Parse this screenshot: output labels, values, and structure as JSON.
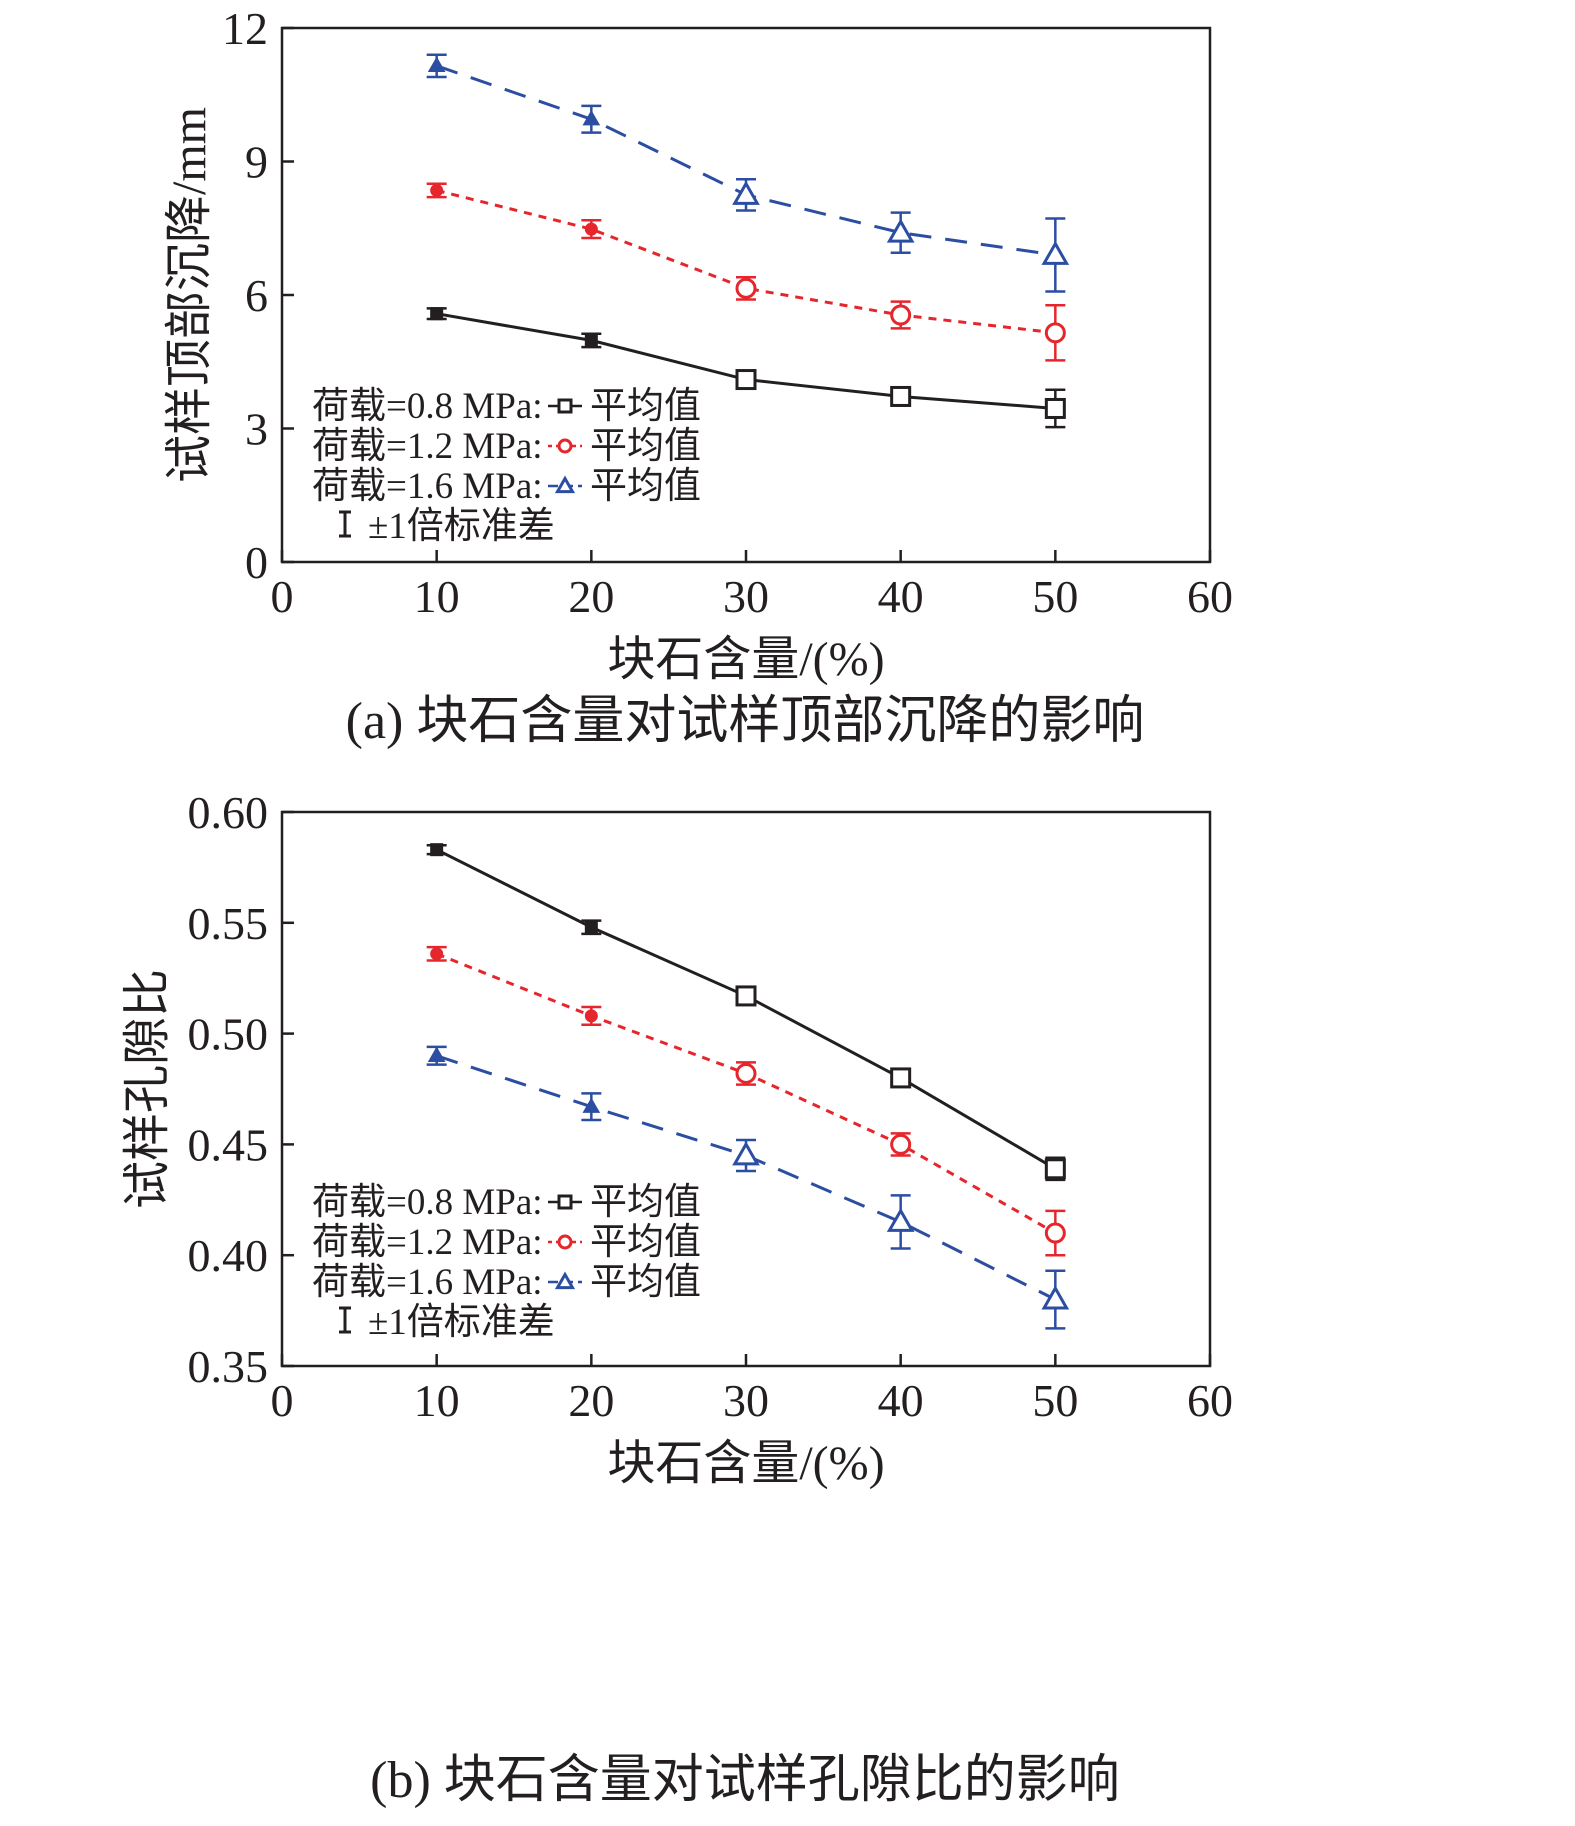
{
  "colors": {
    "black": "#231f20",
    "red": "#e5262c",
    "blue": "#2b4ea2"
  },
  "legend": {
    "entries": [
      {
        "load_label": "荷载=0.8 MPa:",
        "mean_label": "平均值",
        "marker": "square",
        "color": "#231f20",
        "dash": "solid"
      },
      {
        "load_label": "荷载=1.2 MPa:",
        "mean_label": "平均值",
        "marker": "circle",
        "color": "#e5262c",
        "dash": "dotted"
      },
      {
        "load_label": "荷载=1.6 MPa:",
        "mean_label": "平均值",
        "marker": "triangle",
        "color": "#2b4ea2",
        "dash": "dashed"
      }
    ],
    "errorbar_label": "±1倍标准差"
  },
  "chart_data": [
    {
      "type": "line",
      "caption": "(a) 块石含量对试样顶部沉降的影响",
      "xlabel": "块石含量/(%)",
      "ylabel": "试样顶部沉降/mm",
      "xlim": [
        0,
        60
      ],
      "ylim": [
        0,
        12
      ],
      "xticks": [
        0,
        10,
        20,
        30,
        40,
        50,
        60
      ],
      "xtick_labels": [
        "0",
        "10",
        "20",
        "30",
        "40",
        "50",
        "60"
      ],
      "yticks": [
        0,
        3,
        6,
        9,
        12
      ],
      "ytick_labels": [
        "0",
        "3",
        "6",
        "9",
        "12"
      ],
      "grid": false,
      "legend_position": "lower-left",
      "x": [
        10,
        20,
        30,
        40,
        50
      ],
      "series": [
        {
          "load": "0.8 MPa",
          "values": [
            5.58,
            4.98,
            4.1,
            3.72,
            3.45
          ],
          "errors": [
            0.12,
            0.15,
            0.18,
            0.2,
            0.42
          ],
          "color": "#231f20",
          "marker": "square",
          "dash": "solid"
        },
        {
          "load": "1.2 MPa",
          "values": [
            8.35,
            7.48,
            6.15,
            5.55,
            5.15
          ],
          "errors": [
            0.15,
            0.2,
            0.25,
            0.3,
            0.62
          ],
          "color": "#e5262c",
          "marker": "circle",
          "dash": "dotted"
        },
        {
          "load": "1.6 MPa",
          "values": [
            11.15,
            9.95,
            8.25,
            7.4,
            6.9
          ],
          "errors": [
            0.25,
            0.3,
            0.35,
            0.45,
            0.82
          ],
          "color": "#2b4ea2",
          "marker": "triangle",
          "dash": "dashed"
        }
      ]
    },
    {
      "type": "line",
      "caption": "(b) 块石含量对试样孔隙比的影响",
      "xlabel": "块石含量/(%)",
      "ylabel": "试样孔隙比",
      "xlim": [
        0,
        60
      ],
      "ylim": [
        0.35,
        0.6
      ],
      "xticks": [
        0,
        10,
        20,
        30,
        40,
        50,
        60
      ],
      "xtick_labels": [
        "0",
        "10",
        "20",
        "30",
        "40",
        "50",
        "60"
      ],
      "yticks": [
        0.35,
        0.4,
        0.45,
        0.5,
        0.55,
        0.6
      ],
      "ytick_labels": [
        "0.35",
        "0.40",
        "0.45",
        "0.50",
        "0.55",
        "0.60"
      ],
      "grid": false,
      "legend_position": "lower-left",
      "x": [
        10,
        20,
        30,
        40,
        50
      ],
      "series": [
        {
          "load": "0.8 MPa",
          "values": [
            0.583,
            0.548,
            0.517,
            0.48,
            0.439
          ],
          "errors": [
            0.002,
            0.003,
            0.003,
            0.004,
            0.005
          ],
          "color": "#231f20",
          "marker": "square",
          "dash": "solid"
        },
        {
          "load": "1.2 MPa",
          "values": [
            0.536,
            0.508,
            0.482,
            0.45,
            0.41
          ],
          "errors": [
            0.003,
            0.004,
            0.005,
            0.005,
            0.01
          ],
          "color": "#e5262c",
          "marker": "circle",
          "dash": "dotted"
        },
        {
          "load": "1.6 MPa",
          "values": [
            0.49,
            0.467,
            0.445,
            0.415,
            0.38
          ],
          "errors": [
            0.004,
            0.006,
            0.007,
            0.012,
            0.013
          ],
          "color": "#2b4ea2",
          "marker": "triangle",
          "dash": "dashed"
        }
      ]
    }
  ]
}
